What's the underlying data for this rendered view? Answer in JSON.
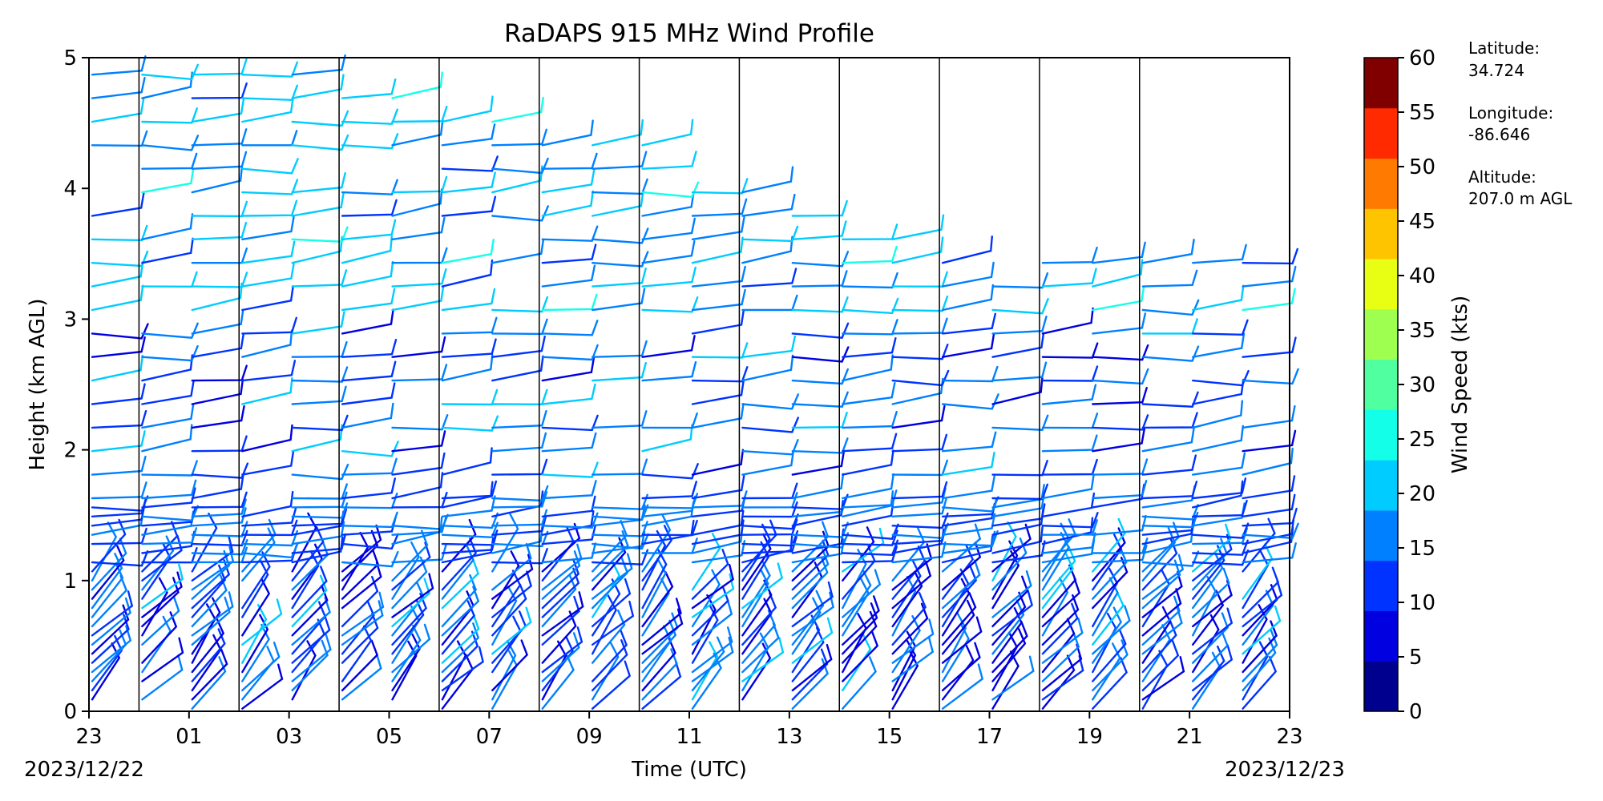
{
  "chart_data": {
    "type": "wind-barb profile",
    "title": "RaDAPS 915 MHz Wind Profile",
    "xlabel": "Time (UTC)",
    "ylabel": "Height (km AGL)",
    "x_ticks": [
      "23",
      "01",
      "03",
      "05",
      "07",
      "09",
      "11",
      "13",
      "15",
      "17",
      "19",
      "21",
      "23"
    ],
    "y_ticks": [
      "0",
      "1",
      "2",
      "3",
      "4",
      "5"
    ],
    "ylim": [
      0,
      5
    ],
    "start_date": "2023/12/22",
    "end_date": "2023/12/23",
    "vertical_lines_at_hours": [
      1,
      3,
      5,
      7,
      9,
      11,
      13,
      15,
      17,
      19,
      21
    ],
    "colorbar": {
      "label": "Wind Speed (kts)",
      "ticks": [
        "0",
        "5",
        "10",
        "15",
        "20",
        "25",
        "30",
        "35",
        "40",
        "45",
        "50",
        "55",
        "60"
      ],
      "colors": [
        "#00008f",
        "#0000e0",
        "#0033ff",
        "#0080ff",
        "#00ccff",
        "#14ffe8",
        "#50ff9f",
        "#9fff50",
        "#e8ff14",
        "#ffc400",
        "#ff7a00",
        "#ff2a00",
        "#800000"
      ]
    }
  },
  "annotations": {
    "latitude_label": "Latitude:",
    "latitude_value": "34.724",
    "longitude_label": "Longitude:",
    "longitude_value": "-86.646",
    "altitude_label": "Altitude:",
    "altitude_value": "207.0 m AGL"
  }
}
